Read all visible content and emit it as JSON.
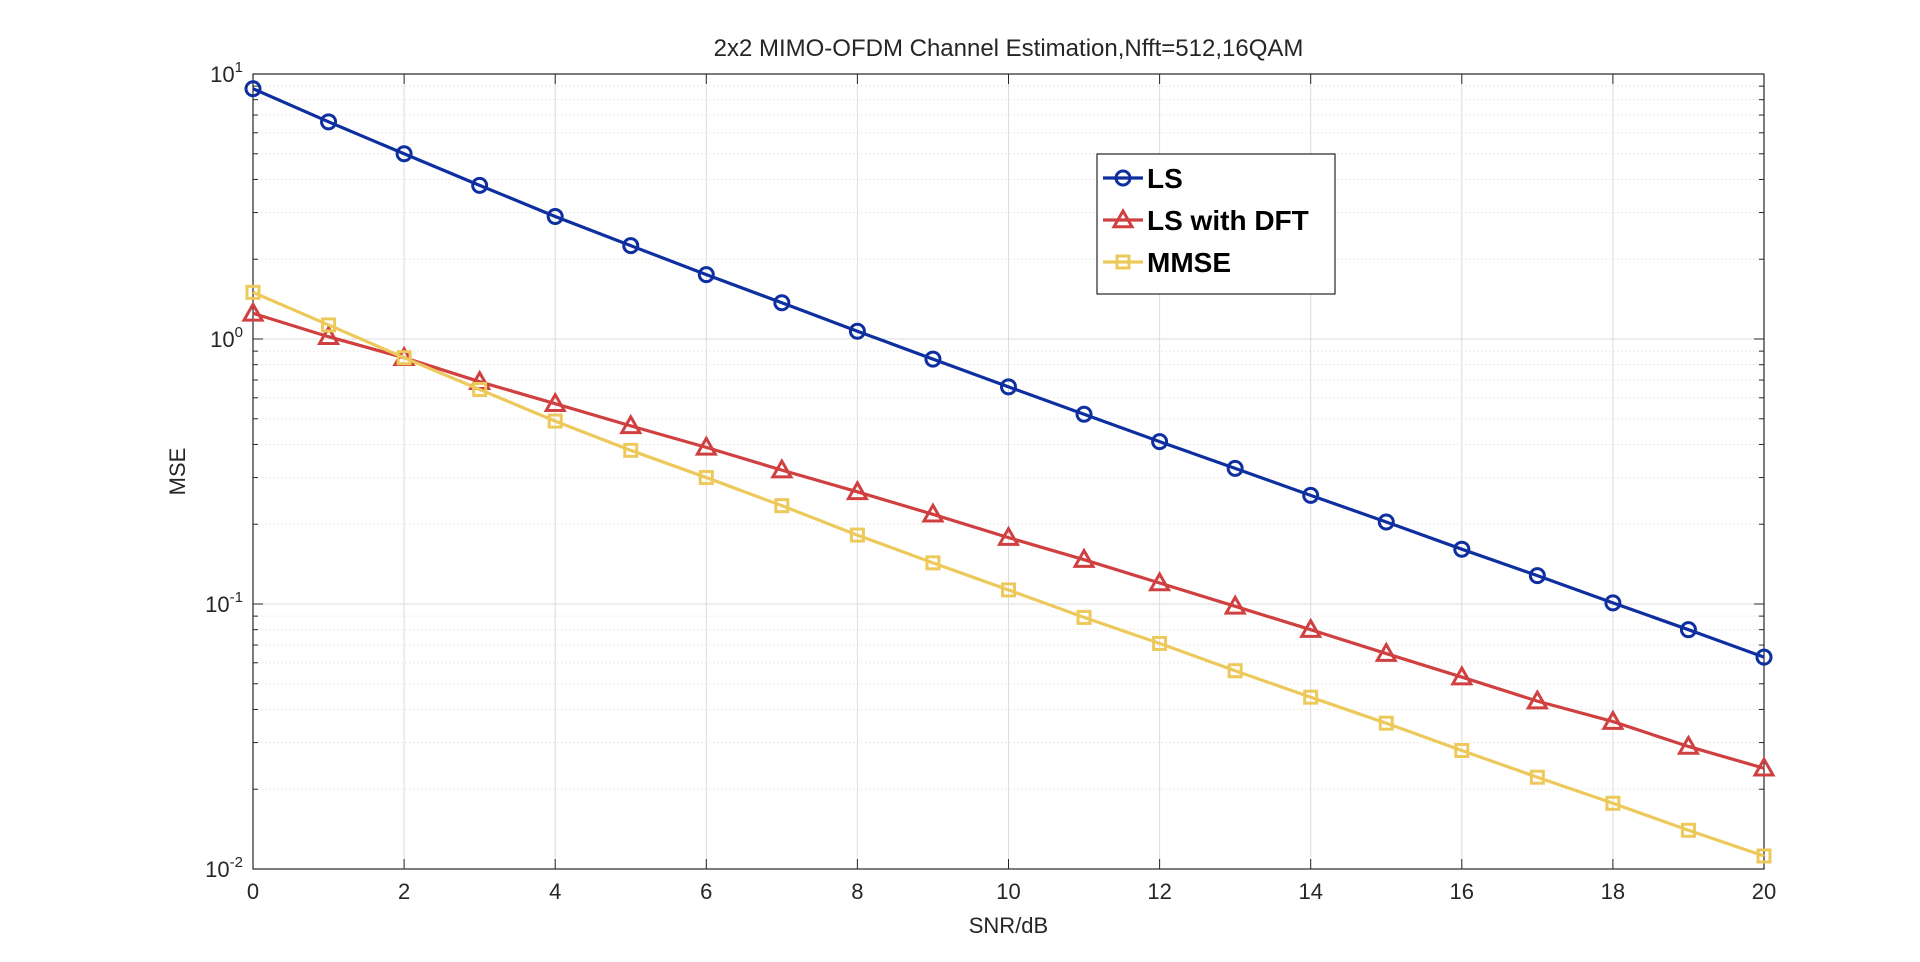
{
  "chart_data": {
    "type": "line",
    "title": "2x2 MIMO-OFDM Channel Estimation,Nfft=512,16QAM",
    "xlabel": "SNR/dB",
    "ylabel": "MSE",
    "xlim": [
      0,
      20
    ],
    "ylim": [
      0.01,
      10
    ],
    "yscale": "log",
    "grid": true,
    "minor_grid": true,
    "legend_position": "top-center-right",
    "x_ticks": [
      0,
      2,
      4,
      6,
      8,
      10,
      12,
      14,
      16,
      18,
      20
    ],
    "y_ticks": [
      {
        "value": 10,
        "base": "10",
        "exp": "1"
      },
      {
        "value": 1,
        "base": "10",
        "exp": "0"
      },
      {
        "value": 0.1,
        "base": "10",
        "exp": "-1"
      },
      {
        "value": 0.01,
        "base": "10",
        "exp": "-2"
      }
    ],
    "x": [
      0,
      1,
      2,
      3,
      4,
      5,
      6,
      7,
      8,
      9,
      10,
      11,
      12,
      13,
      14,
      15,
      16,
      17,
      18,
      19,
      20
    ],
    "series": [
      {
        "name": "LS",
        "color": "#0E2FA0",
        "marker": "circle",
        "values": [
          8.8,
          6.6,
          5.0,
          3.8,
          2.9,
          2.25,
          1.75,
          1.37,
          1.07,
          0.84,
          0.66,
          0.52,
          0.41,
          0.325,
          0.257,
          0.204,
          0.161,
          0.128,
          0.101,
          0.08,
          0.063
        ]
      },
      {
        "name": "LS with DFT",
        "color": "#D04040",
        "marker": "triangle",
        "values": [
          1.25,
          1.02,
          0.85,
          0.69,
          0.57,
          0.47,
          0.39,
          0.32,
          0.265,
          0.218,
          0.178,
          0.147,
          0.12,
          0.098,
          0.08,
          0.065,
          0.053,
          0.043,
          0.036,
          0.029,
          0.024
        ]
      },
      {
        "name": "MMSE",
        "color": "#EDC95B",
        "marker": "square",
        "values": [
          1.5,
          1.13,
          0.85,
          0.645,
          0.49,
          0.38,
          0.3,
          0.235,
          0.182,
          0.143,
          0.113,
          0.089,
          0.071,
          0.056,
          0.0445,
          0.0355,
          0.028,
          0.0222,
          0.0177,
          0.014,
          0.0112
        ]
      }
    ]
  }
}
